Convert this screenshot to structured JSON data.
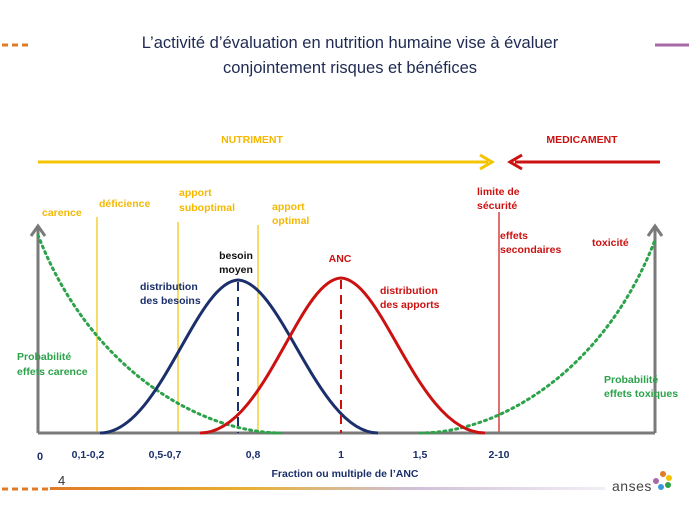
{
  "title": {
    "line1": "L’activité d’évaluation en nutrition humaine vise à évaluer",
    "line2": "conjointement risques et bénéfices"
  },
  "arrows": {
    "nutriment": "NUTRIMENT",
    "medicament": "MEDICAMENT"
  },
  "zones": {
    "carence": "carence",
    "deficience": "déficience",
    "apport_suboptimal": [
      "apport",
      "suboptimal"
    ],
    "apport_optimal": [
      "apport",
      "optimal"
    ],
    "limite_securite": [
      "limite de",
      "sécurité"
    ],
    "effets_secondaires": [
      "effets",
      "secondaires"
    ],
    "toxicite": "toxicité"
  },
  "curves": {
    "besoin_moyen": [
      "besoin",
      "moyen"
    ],
    "anc": "ANC",
    "distribution_besoins": [
      "distribution",
      "des besoins"
    ],
    "distribution_apports": [
      "distribution",
      "des apports"
    ]
  },
  "probabilities": {
    "carence": [
      "Probabilité",
      "effets carence"
    ],
    "toxiques": [
      "Probabilité",
      "effets toxiques"
    ]
  },
  "axis": {
    "zero": "0",
    "ticks": [
      "0,1-0,2",
      "0,5-0,7",
      "0,8",
      "1",
      "1,5",
      "2-10"
    ],
    "label": "Fraction ou multiple de l’ANC"
  },
  "footer": {
    "page_number": "4",
    "logo": "anses"
  },
  "colors": {
    "yellow": "#f5c400",
    "red": "#cc1111",
    "navy": "#1a2f6b",
    "green": "#2ca24a",
    "gray": "#7a7a7a",
    "title": "#1f2a52"
  }
}
